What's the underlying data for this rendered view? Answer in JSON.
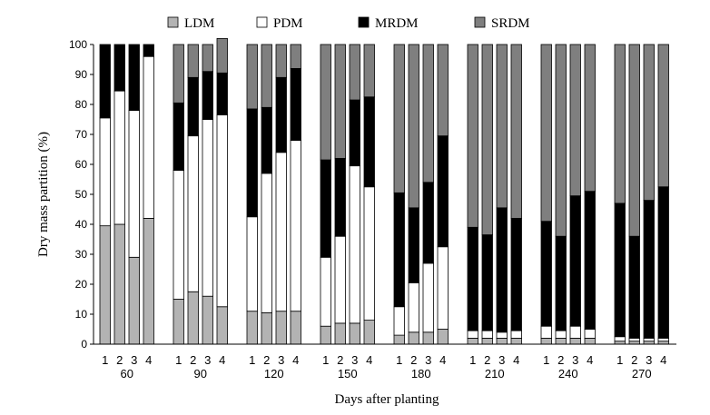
{
  "chart_data": {
    "type": "bar",
    "stacked": true,
    "xlabel": "Days after planting",
    "ylabel": "Dry mass partition (%)",
    "ylim": [
      0,
      100
    ],
    "yticks": [
      0,
      10,
      20,
      30,
      40,
      50,
      60,
      70,
      80,
      90,
      100
    ],
    "legend_position": "top",
    "groups": [
      "60",
      "90",
      "120",
      "150",
      "180",
      "210",
      "240",
      "270"
    ],
    "replicates": [
      "1",
      "2",
      "3",
      "4"
    ],
    "series": [
      {
        "name": "LDM",
        "color": "#b3b3b3",
        "values": [
          [
            39.5,
            40,
            29,
            42
          ],
          [
            15,
            17.5,
            16,
            12.5
          ],
          [
            11,
            10.5,
            11,
            11
          ],
          [
            6,
            7,
            7,
            8
          ],
          [
            3,
            4,
            4,
            5
          ],
          [
            2,
            2,
            2,
            2
          ],
          [
            2,
            2,
            2,
            2
          ],
          [
            1,
            1,
            1,
            1
          ]
        ]
      },
      {
        "name": "PDM",
        "color": "#ffffff",
        "values": [
          [
            36,
            44.5,
            49,
            54
          ],
          [
            43,
            52,
            59,
            64
          ],
          [
            31.5,
            46.5,
            53,
            57
          ],
          [
            23,
            29,
            52.5,
            44.5
          ],
          [
            9.5,
            16.5,
            23,
            27.5
          ],
          [
            2.5,
            2.5,
            2,
            2.5
          ],
          [
            4,
            2.5,
            4,
            3
          ],
          [
            1.5,
            1,
            1,
            1
          ]
        ]
      },
      {
        "name": "MRDM",
        "color": "#000000",
        "values": [
          [
            24.5,
            15.5,
            22,
            4
          ],
          [
            22.5,
            19.5,
            16,
            14
          ],
          [
            36,
            22,
            25,
            24
          ],
          [
            32.5,
            26,
            22,
            30
          ],
          [
            38,
            25,
            27,
            37
          ],
          [
            34.5,
            32,
            41.5,
            37.5
          ],
          [
            35,
            31.5,
            43.5,
            46
          ],
          [
            44.5,
            34,
            46,
            50.5
          ]
        ]
      },
      {
        "name": "SRDM",
        "color": "#7f7f7f",
        "values": [
          [
            0,
            0,
            0,
            0
          ],
          [
            19.5,
            11,
            9,
            11.5
          ],
          [
            21.5,
            21,
            11,
            8
          ],
          [
            38.5,
            38,
            18.5,
            17.5
          ],
          [
            49.5,
            54.5,
            46,
            30.5
          ],
          [
            61,
            63.5,
            54.5,
            58
          ],
          [
            59,
            64,
            50.5,
            49
          ],
          [
            53,
            64,
            52,
            47.5
          ]
        ]
      }
    ]
  }
}
